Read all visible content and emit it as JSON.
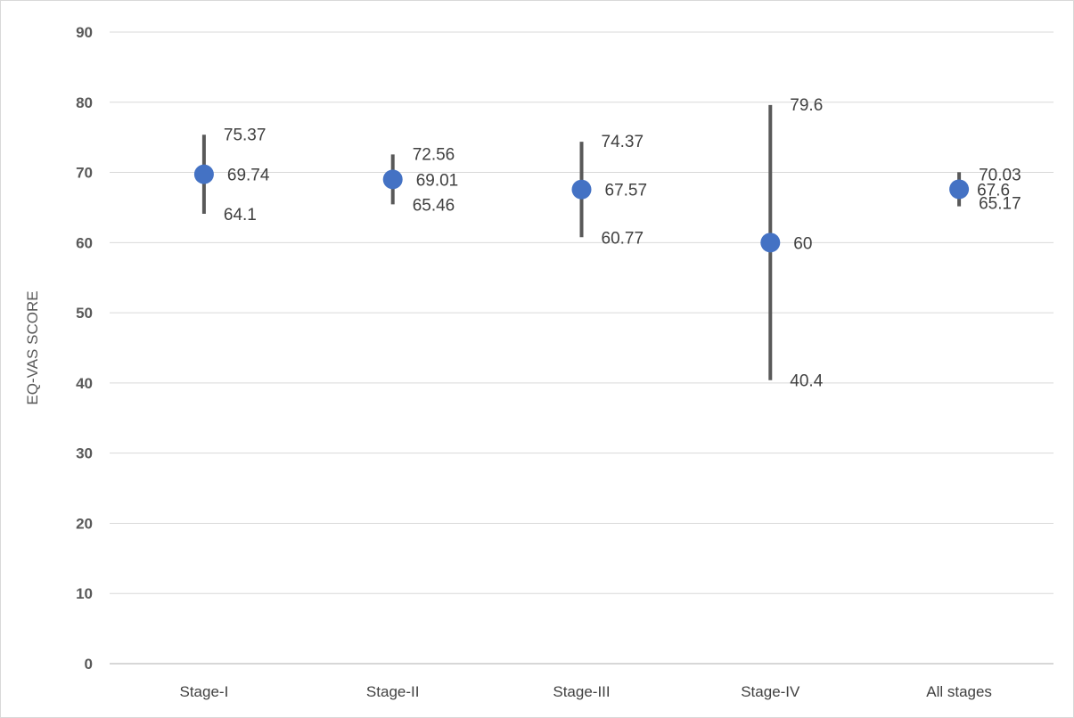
{
  "chart_data": {
    "type": "scatter",
    "title": "",
    "xlabel": "",
    "ylabel": "EQ-VAS SCORE",
    "ylim": [
      0,
      90
    ],
    "y_ticks": [
      "0",
      "10",
      "20",
      "30",
      "40",
      "50",
      "60",
      "70",
      "80",
      "90"
    ],
    "grid": true,
    "categories": [
      "Stage-I",
      "Stage-II",
      "Stage-III",
      "Stage-IV",
      "All stages"
    ],
    "series": [
      {
        "values": [
          69.74,
          69.01,
          67.57,
          60,
          67.6
        ],
        "lower": [
          64.1,
          65.46,
          60.77,
          40.4,
          65.17
        ],
        "upper": [
          75.37,
          72.56,
          74.37,
          79.6,
          70.03
        ],
        "value_labels": [
          "69.74",
          "69.01",
          "67.57",
          "60",
          "67.6"
        ],
        "lower_labels": [
          "64.1",
          "65.46",
          "60.77",
          "40.4",
          "65.17"
        ],
        "upper_labels": [
          "75.37",
          "72.56",
          "74.37",
          "79.6",
          "70.03"
        ]
      }
    ],
    "colors": {
      "marker": "#4472c4",
      "error_bar": "#595959",
      "grid": "#d9d9d9",
      "axis": "#bfbfbf"
    }
  }
}
